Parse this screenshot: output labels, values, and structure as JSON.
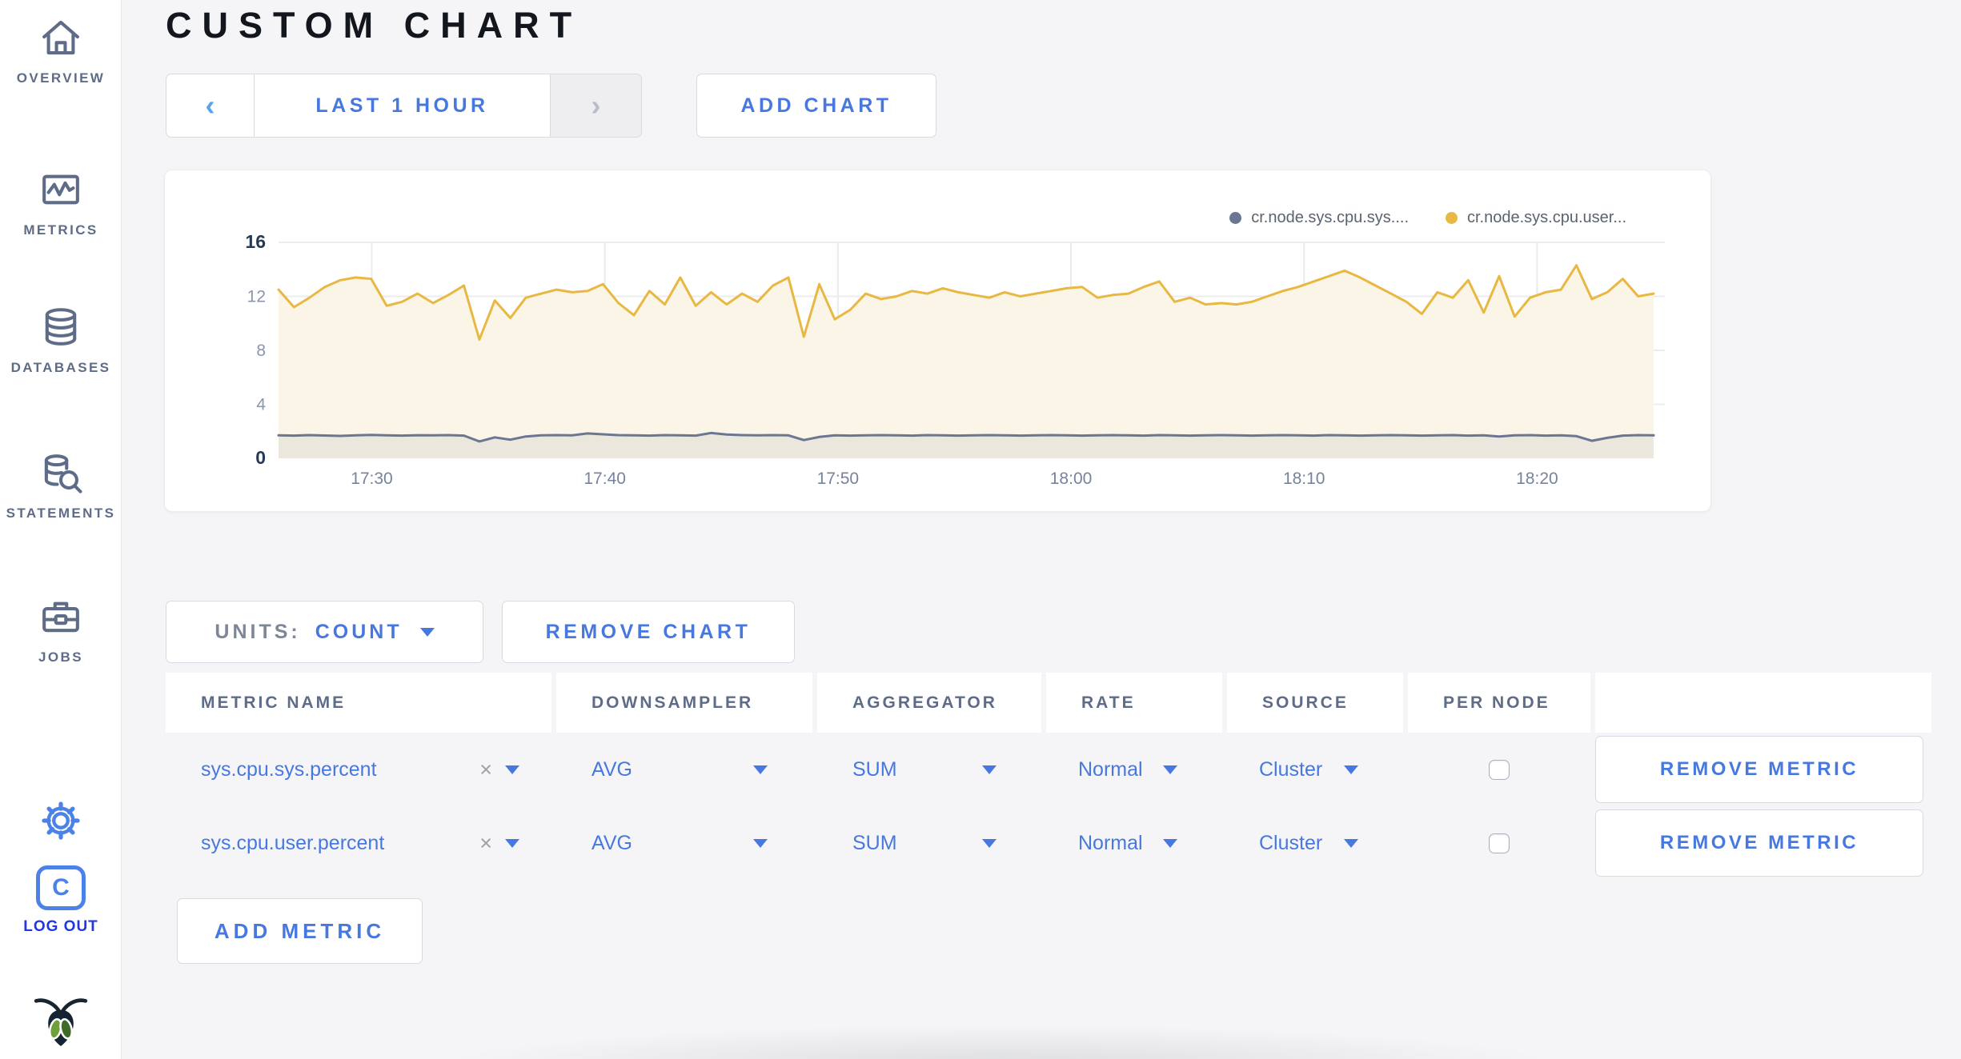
{
  "colors": {
    "accent_blue": "#4778E0",
    "icon_blue": "#4C82E8",
    "logout_blue": "#2136E4",
    "slate": "#5F6C87",
    "series_sys": "#6B7693",
    "series_user": "#E8B842",
    "fill_user": "#FAF5E6",
    "fill_sys": "#EBE7DC",
    "grid": "#EAEAEA"
  },
  "icons": {
    "prev": "‹",
    "next": "›",
    "clear_x": "×",
    "caret": "caret-down-triangle"
  },
  "sidebar": {
    "items": [
      {
        "icon": "home-icon",
        "label": "OVERVIEW"
      },
      {
        "icon": "metrics-icon",
        "label": "METRICS"
      },
      {
        "icon": "databases-icon",
        "label": "DATABASES"
      },
      {
        "icon": "statements-icon",
        "label": "STATEMENTS"
      },
      {
        "icon": "jobs-icon",
        "label": "JOBS"
      }
    ],
    "logout_initial": "C",
    "logout_label": "LOG OUT"
  },
  "header": {
    "title": "CUSTOM CHART"
  },
  "toolbar": {
    "time_range_label": "LAST 1 HOUR",
    "add_chart_label": "ADD CHART"
  },
  "chart_controls": {
    "units_label": "UNITS:",
    "units_value": "COUNT",
    "remove_chart_label": "REMOVE CHART",
    "add_metric_label": "ADD METRIC"
  },
  "table": {
    "headers": [
      "METRIC NAME",
      "DOWNSAMPLER",
      "AGGREGATOR",
      "RATE",
      "SOURCE",
      "PER NODE",
      ""
    ],
    "rows": [
      {
        "metric_name": "sys.cpu.sys.percent",
        "downsampler": "AVG",
        "aggregator": "SUM",
        "rate": "Normal",
        "source": "Cluster",
        "per_node": false,
        "remove_label": "REMOVE METRIC"
      },
      {
        "metric_name": "sys.cpu.user.percent",
        "downsampler": "AVG",
        "aggregator": "SUM",
        "rate": "Normal",
        "source": "Cluster",
        "per_node": false,
        "remove_label": "REMOVE METRIC"
      }
    ]
  },
  "chart_data": {
    "type": "line",
    "title": "",
    "xlabel": "",
    "ylabel": "",
    "ylim": [
      0,
      16
    ],
    "y_ticks": [
      0,
      4,
      8,
      12,
      16
    ],
    "x_span_minutes": 59,
    "x_start_time": "17:26",
    "x_tick_minutes": [
      4,
      14,
      24,
      34,
      44,
      54
    ],
    "x_tick_labels": [
      "17:30",
      "17:40",
      "17:50",
      "18:00",
      "18:10",
      "18:20"
    ],
    "grid": true,
    "legend_position": "top-right",
    "series": [
      {
        "name": "cr.node.sys.cpu.sys....",
        "color": "#6B7693",
        "fill": "#EBE7DC",
        "values": [
          1.7,
          1.68,
          1.72,
          1.69,
          1.66,
          1.7,
          1.73,
          1.7,
          1.68,
          1.71,
          1.7,
          1.72,
          1.68,
          1.25,
          1.55,
          1.38,
          1.62,
          1.7,
          1.72,
          1.7,
          1.84,
          1.78,
          1.72,
          1.7,
          1.68,
          1.72,
          1.7,
          1.68,
          1.88,
          1.76,
          1.72,
          1.7,
          1.72,
          1.7,
          1.35,
          1.58,
          1.7,
          1.68,
          1.7,
          1.72,
          1.7,
          1.68,
          1.72,
          1.7,
          1.68,
          1.7,
          1.72,
          1.7,
          1.68,
          1.7,
          1.72,
          1.7,
          1.68,
          1.7,
          1.72,
          1.7,
          1.68,
          1.72,
          1.7,
          1.68,
          1.7,
          1.72,
          1.7,
          1.68,
          1.7,
          1.72,
          1.7,
          1.68,
          1.72,
          1.7,
          1.68,
          1.7,
          1.72,
          1.7,
          1.68,
          1.7,
          1.72,
          1.68,
          1.7,
          1.62,
          1.7,
          1.72,
          1.68,
          1.7,
          1.64,
          1.3,
          1.52,
          1.68,
          1.72,
          1.7
        ]
      },
      {
        "name": "cr.node.sys.cpu.user...",
        "color": "#E8B842",
        "fill": "#FAF5E6",
        "values": [
          12.5,
          11.2,
          11.9,
          12.7,
          13.2,
          13.4,
          13.3,
          11.3,
          11.6,
          12.2,
          11.5,
          12.1,
          12.8,
          8.8,
          11.7,
          10.4,
          11.9,
          12.2,
          12.5,
          12.3,
          12.4,
          12.9,
          11.5,
          10.6,
          12.4,
          11.4,
          13.4,
          11.3,
          12.3,
          11.4,
          12.2,
          11.6,
          12.8,
          13.4,
          9.0,
          12.9,
          10.3,
          11.0,
          12.2,
          11.8,
          12.0,
          12.4,
          12.2,
          12.6,
          12.3,
          12.1,
          11.9,
          12.3,
          12.0,
          12.2,
          12.4,
          12.6,
          12.7,
          11.9,
          12.1,
          12.2,
          12.7,
          13.1,
          11.6,
          11.9,
          11.4,
          11.5,
          11.4,
          11.6,
          12.0,
          12.4,
          12.7,
          13.1,
          13.5,
          13.9,
          13.4,
          12.8,
          12.2,
          11.6,
          10.7,
          12.3,
          11.9,
          13.2,
          10.8,
          13.5,
          10.5,
          11.9,
          12.3,
          12.5,
          14.3,
          11.8,
          12.3,
          13.3,
          12.0,
          12.2
        ]
      }
    ]
  }
}
